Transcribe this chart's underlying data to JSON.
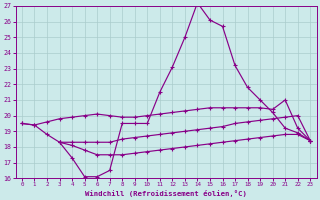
{
  "xlabel": "Windchill (Refroidissement éolien,°C)",
  "x": [
    0,
    1,
    2,
    3,
    4,
    5,
    6,
    7,
    8,
    9,
    10,
    11,
    12,
    13,
    14,
    15,
    16,
    17,
    18,
    19,
    20,
    21,
    22,
    23
  ],
  "line_spike": [
    19.5,
    19.4,
    18.8,
    18.3,
    17.3,
    16.1,
    16.1,
    16.5,
    19.5,
    19.5,
    19.5,
    21.5,
    23.1,
    25.0,
    27.2,
    26.1,
    25.7,
    23.2,
    21.8,
    21.0,
    20.2,
    19.2,
    18.9,
    18.4
  ],
  "line_upper": [
    19.5,
    19.4,
    19.6,
    19.8,
    19.9,
    20.0,
    20.1,
    20.0,
    19.9,
    19.9,
    20.0,
    20.1,
    20.2,
    20.3,
    20.4,
    20.5,
    20.5,
    20.5,
    20.5,
    20.5,
    20.4,
    21.0,
    19.2,
    18.4
  ],
  "line_mid": [
    null,
    null,
    null,
    18.3,
    18.3,
    18.3,
    18.3,
    18.3,
    18.5,
    18.6,
    18.7,
    18.8,
    18.9,
    19.0,
    19.1,
    19.2,
    19.3,
    19.5,
    19.6,
    19.7,
    19.8,
    19.9,
    20.0,
    18.4
  ],
  "line_low": [
    null,
    null,
    null,
    18.3,
    18.1,
    17.8,
    17.5,
    17.5,
    17.5,
    17.6,
    17.7,
    17.8,
    17.9,
    18.0,
    18.1,
    18.2,
    18.3,
    18.4,
    18.5,
    18.6,
    18.7,
    18.8,
    18.8,
    18.4
  ],
  "ylim": [
    16,
    27
  ],
  "xlim": [
    -0.5,
    23.5
  ],
  "yticks": [
    16,
    17,
    18,
    19,
    20,
    21,
    22,
    23,
    24,
    25,
    26,
    27
  ],
  "xticks": [
    0,
    1,
    2,
    3,
    4,
    5,
    6,
    7,
    8,
    9,
    10,
    11,
    12,
    13,
    14,
    15,
    16,
    17,
    18,
    19,
    20,
    21,
    22,
    23
  ],
  "bg_color": "#cceaea",
  "grid_color": "#aacccc",
  "line_color": "#880088"
}
